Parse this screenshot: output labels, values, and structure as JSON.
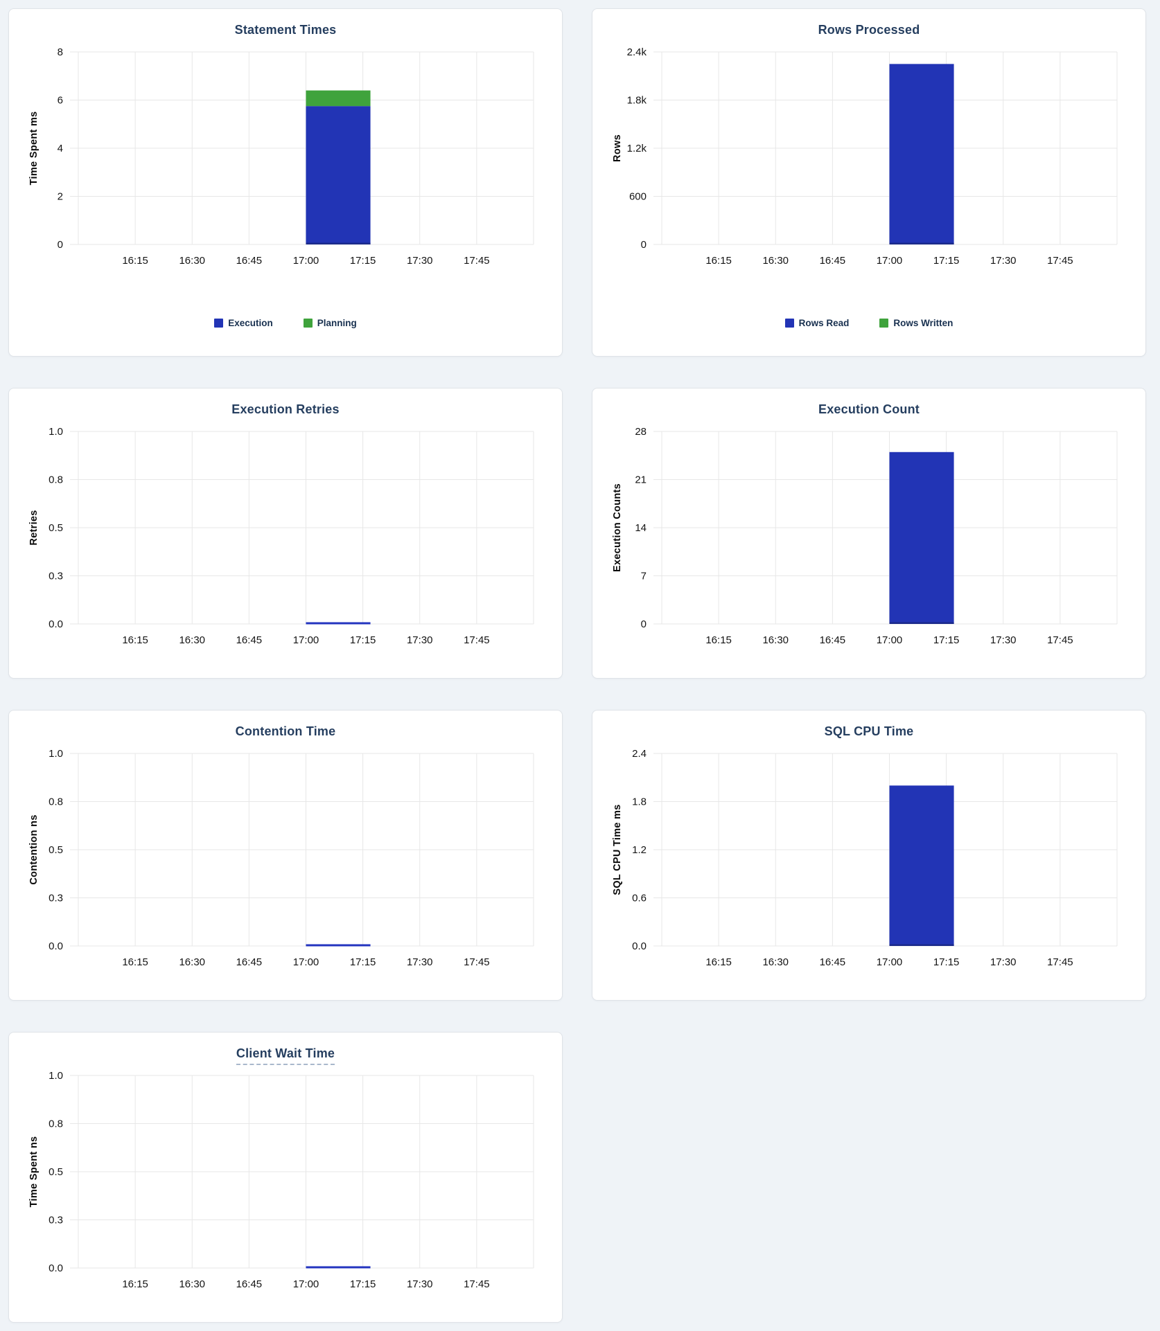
{
  "page": {
    "background_color": "#eff3f7",
    "layout": "two-column dashboard of statement statistics charts"
  },
  "colors": {
    "bar_blue": "#2234b5",
    "bar_green": "#3fa33c",
    "zero_line_blue": "#2334bf",
    "bar_bottom_edge": "#1b2a8a",
    "title_text": "#253e5f",
    "grid_line": "#e7e7e7",
    "tick_text": "#141414",
    "legend_text": "#18304f"
  },
  "x_axis": {
    "domain_start": "16:00",
    "domain_end": "18:00",
    "domain_minutes": 120,
    "tick_labels": [
      "16:15",
      "16:30",
      "16:45",
      "17:00",
      "17:15",
      "17:30",
      "17:45"
    ]
  },
  "chart_data": [
    {
      "id": "statement-times",
      "type": "bar",
      "title": "Statement Times",
      "ylabel": "Time Spent ms",
      "ymax": 8,
      "ytick_labels": [
        "8",
        "6",
        "4",
        "2",
        "0"
      ],
      "ytick_values": [
        8,
        6,
        4,
        2,
        0
      ],
      "stacked": true,
      "legend": true,
      "bar_start_min": 60,
      "bar_end_min": 77,
      "series": [
        {
          "name": "Execution",
          "color_key": "bar_blue",
          "value": 5.75
        },
        {
          "name": "Planning",
          "color_key": "bar_green",
          "value": 0.65
        }
      ]
    },
    {
      "id": "rows-processed",
      "type": "bar",
      "title": "Rows Processed",
      "ylabel": "Rows",
      "ymax": 2400,
      "ytick_labels": [
        "2.4k",
        "1.8k",
        "1.2k",
        "600",
        "0"
      ],
      "ytick_values": [
        2400,
        1800,
        1200,
        600,
        0
      ],
      "stacked": true,
      "legend": true,
      "bar_start_min": 60,
      "bar_end_min": 77,
      "series": [
        {
          "name": "Rows Read",
          "color_key": "bar_blue",
          "value": 2250
        },
        {
          "name": "Rows Written",
          "color_key": "bar_green",
          "value": 0
        }
      ]
    },
    {
      "id": "execution-retries",
      "type": "bar",
      "title": "Execution Retries",
      "ylabel": "Retries",
      "ymax": 1,
      "ytick_labels": [
        "1.0",
        "0.8",
        "0.5",
        "0.3",
        "0.0"
      ],
      "ytick_values": [
        1.0,
        0.75,
        0.5,
        0.25,
        0
      ],
      "stacked": false,
      "legend": false,
      "bar_start_min": 60,
      "bar_end_min": 77,
      "series": [
        {
          "name": "Retries",
          "color_key": "bar_blue",
          "value": 0
        }
      ]
    },
    {
      "id": "execution-count",
      "type": "bar",
      "title": "Execution Count",
      "ylabel": "Execution Counts",
      "ymax": 28,
      "ytick_labels": [
        "28",
        "21",
        "14",
        "7",
        "0"
      ],
      "ytick_values": [
        28,
        21,
        14,
        7,
        0
      ],
      "stacked": false,
      "legend": false,
      "bar_start_min": 60,
      "bar_end_min": 77,
      "series": [
        {
          "name": "Execution Count",
          "color_key": "bar_blue",
          "value": 25
        }
      ]
    },
    {
      "id": "contention-time",
      "type": "bar",
      "title": "Contention Time",
      "ylabel": "Contention ns",
      "ymax": 1,
      "ytick_labels": [
        "1.0",
        "0.8",
        "0.5",
        "0.3",
        "0.0"
      ],
      "ytick_values": [
        1.0,
        0.75,
        0.5,
        0.25,
        0
      ],
      "stacked": false,
      "legend": false,
      "bar_start_min": 60,
      "bar_end_min": 77,
      "series": [
        {
          "name": "Contention",
          "color_key": "bar_blue",
          "value": 0
        }
      ]
    },
    {
      "id": "sql-cpu-time",
      "type": "bar",
      "title": "SQL CPU Time",
      "ylabel": "SQL CPU Time ms",
      "ymax": 2.4,
      "ytick_labels": [
        "2.4",
        "1.8",
        "1.2",
        "0.6",
        "0.0"
      ],
      "ytick_values": [
        2.4,
        1.8,
        1.2,
        0.6,
        0
      ],
      "stacked": false,
      "legend": false,
      "bar_start_min": 60,
      "bar_end_min": 77,
      "series": [
        {
          "name": "SQL CPU Time",
          "color_key": "bar_blue",
          "value": 2.0
        }
      ]
    },
    {
      "id": "client-wait-time",
      "type": "bar",
      "title": "Client Wait Time",
      "title_underline": true,
      "ylabel": "Time Spent ns",
      "ymax": 1,
      "ytick_labels": [
        "1.0",
        "0.8",
        "0.5",
        "0.3",
        "0.0"
      ],
      "ytick_values": [
        1.0,
        0.75,
        0.5,
        0.25,
        0
      ],
      "stacked": false,
      "legend": false,
      "bar_start_min": 60,
      "bar_end_min": 77,
      "series": [
        {
          "name": "Client Wait",
          "color_key": "bar_blue",
          "value": 0
        }
      ]
    }
  ]
}
